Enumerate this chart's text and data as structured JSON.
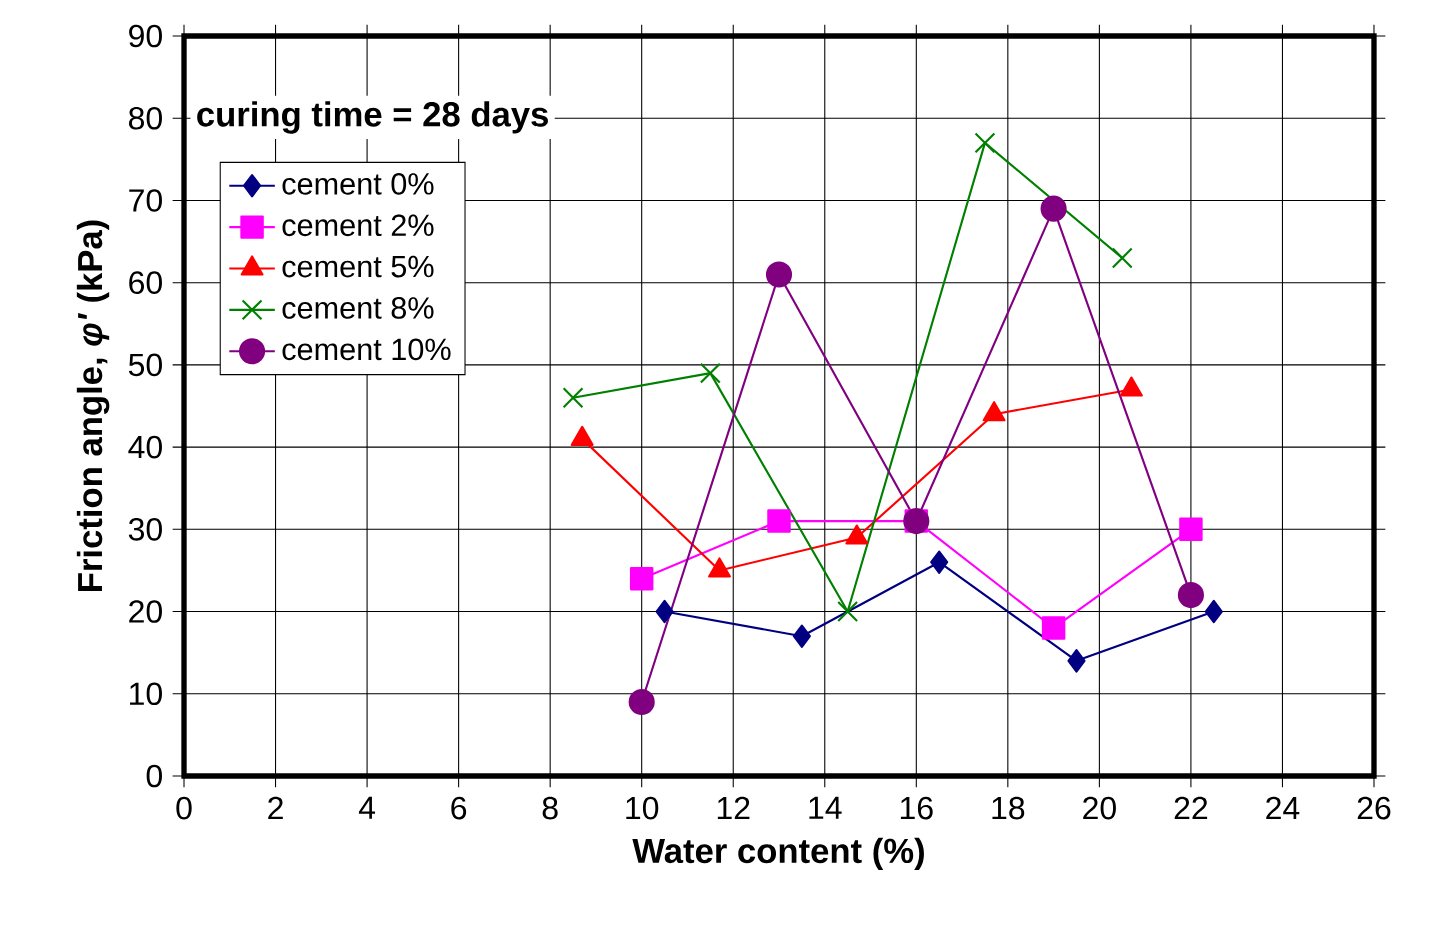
{
  "chart_data": {
    "type": "line",
    "xlabel": "Water content (%)",
    "ylabel": "Friction angle, *φ'* (kPa)",
    "annotations": [
      "curing time = 28 days"
    ],
    "series": [
      {
        "name": "cement 0%",
        "color": "#000080",
        "marker": "diamond",
        "x": [
          10.5,
          13.5,
          16.5,
          19.5,
          22.5
        ],
        "values": [
          20,
          17,
          26,
          14,
          20
        ]
      },
      {
        "name": "cement 2%",
        "color": "#ff00ff",
        "marker": "square",
        "x": [
          10,
          13,
          16,
          19,
          22
        ],
        "values": [
          24,
          31,
          31,
          18,
          30
        ]
      },
      {
        "name": "cement 5%",
        "color": "#ff0000",
        "marker": "triangle",
        "x": [
          8.7,
          11.7,
          14.7,
          17.7,
          20.7
        ],
        "values": [
          41,
          25,
          29,
          44,
          47
        ]
      },
      {
        "name": "cement 8%",
        "color": "#008000",
        "marker": "cross",
        "x": [
          8.5,
          11.5,
          14.5,
          17.5,
          20.5
        ],
        "values": [
          46,
          49,
          20,
          77,
          63
        ]
      },
      {
        "name": "cement 10%",
        "color": "#800080",
        "marker": "circle",
        "x": [
          10,
          13,
          16,
          19,
          22
        ],
        "values": [
          9,
          61,
          31,
          69,
          22
        ]
      }
    ],
    "xlim": [
      0,
      26
    ],
    "xticks": [
      0,
      2,
      4,
      6,
      8,
      10,
      12,
      14,
      16,
      18,
      20,
      22,
      24,
      26
    ],
    "ylim": [
      0,
      90
    ],
    "yticks": [
      0,
      10,
      20,
      30,
      40,
      50,
      60,
      70,
      80,
      90
    ],
    "grid": true,
    "legend": "top left",
    "line_style": "solid"
  }
}
